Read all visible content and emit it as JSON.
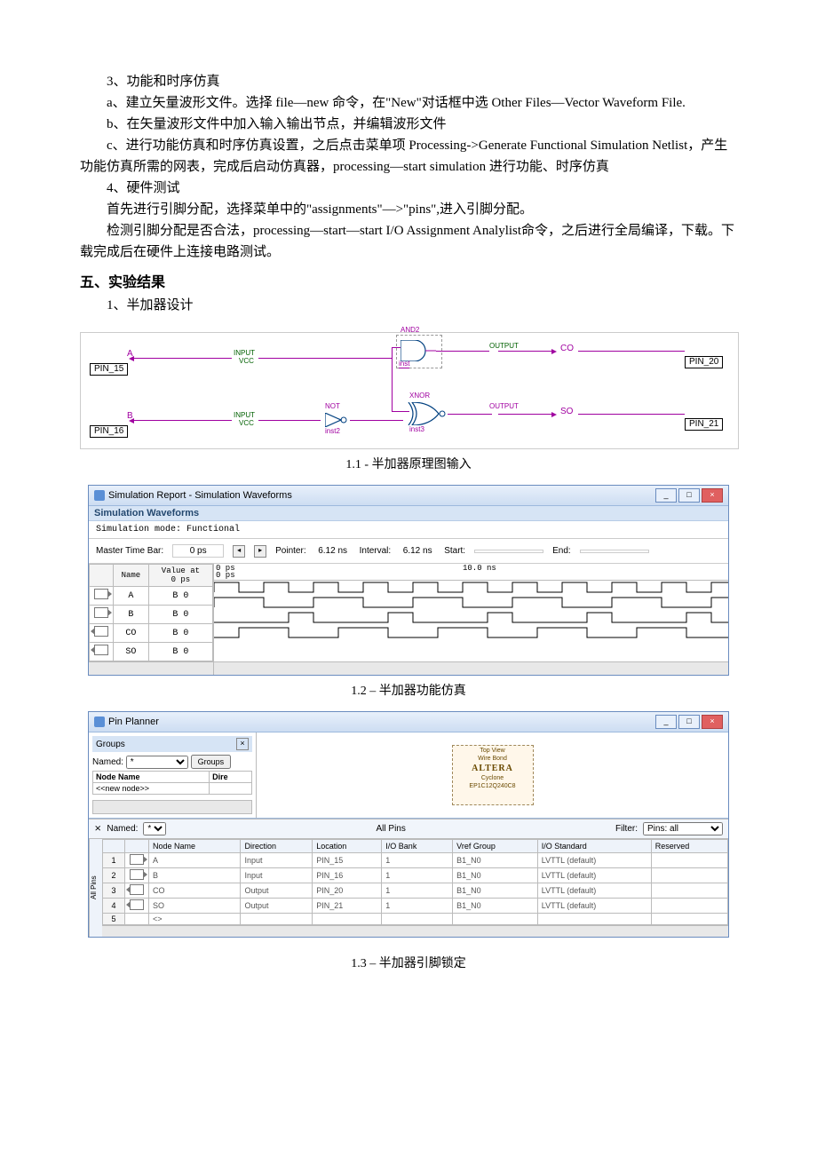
{
  "text": {
    "p1": "3、功能和时序仿真",
    "p2": "a、建立矢量波形文件。选择 file—new 命令，在\"New\"对话框中选 Other Files—Vector Waveform File.",
    "p3": "b、在矢量波形文件中加入输入输出节点，并编辑波形文件",
    "p4": "c、进行功能仿真和时序仿真设置，之后点击菜单项 Processing->Generate Functional Simulation Netlist，产生功能仿真所需的网表，完成后启动仿真器，processing—start simulation 进行功能、时序仿真",
    "p5": "4、硬件测试",
    "p6": "首先进行引脚分配，选择菜单中的\"assignments\"—>\"pins\",进入引脚分配。",
    "p7": "检测引脚分配是否合法，processing—start—start  I/O Assignment Analylist命令，之后进行全局编译，下载。下载完成后在硬件上连接电路测试。",
    "sec5": "五、实验结果",
    "p8": "1、半加器设计"
  },
  "captions": {
    "c1": "1.1 - 半加器原理图输入",
    "c2": "1.2 – 半加器功能仿真",
    "c3": "1.3 – 半加器引脚锁定"
  },
  "schematic": {
    "pins_in": [
      "PIN_15",
      "PIN_16"
    ],
    "pins_out": [
      "PIN_20",
      "PIN_21"
    ],
    "inputs": [
      {
        "name": "A",
        "label": "INPUT",
        "vcc": "VCC"
      },
      {
        "name": "B",
        "label": "INPUT",
        "vcc": "VCC"
      }
    ],
    "outputs": [
      {
        "name": "CO",
        "label": "OUTPUT"
      },
      {
        "name": "SO",
        "label": "OUTPUT"
      }
    ],
    "gates": {
      "and": "AND2",
      "xnor": "XNOR",
      "not": "NOT",
      "inst_and": "inst",
      "inst_not": "inst2",
      "inst_xnor": "inst3"
    },
    "wire_color": "#a000a0",
    "label_color": "#008000"
  },
  "simwin": {
    "title": "Simulation Report - Simulation Waveforms",
    "subhead": "Simulation Waveforms",
    "mode": "Simulation mode: Functional",
    "toolbar": {
      "masterbar_lbl": "Master Time Bar:",
      "masterbar_val": "0 ps",
      "pointer_lbl": "Pointer:",
      "pointer_val": "6.12 ns",
      "interval_lbl": "Interval:",
      "interval_val": "6.12 ns",
      "start_lbl": "Start:",
      "start_val": "",
      "end_lbl": "End:",
      "end_val": ""
    },
    "cols": {
      "name": "Name",
      "value": "Value at\n0 ps"
    },
    "ruler": {
      "t0": "0 ps",
      "t0b": "0 ps",
      "t1": "10.0 ns"
    },
    "signals": [
      {
        "name": "A",
        "value": "B 0",
        "dir": "in",
        "period": 1.0
      },
      {
        "name": "B",
        "value": "B 0",
        "dir": "in",
        "period": 2.0
      },
      {
        "name": "CO",
        "value": "B 0",
        "dir": "out"
      },
      {
        "name": "SO",
        "value": "B 0",
        "dir": "out"
      }
    ],
    "colors": {
      "wave": "#000000",
      "bg": "#ffffff",
      "grid": "#dddddd",
      "titlebar": "#cdddf2"
    }
  },
  "pinplanner": {
    "title": "Pin Planner",
    "groups": {
      "title": "Groups",
      "named_lbl": "Named:",
      "named_val": "*",
      "btn": "Groups",
      "col_node": "Node Name",
      "col_dir": "Dire",
      "newnode": "<<new node>>"
    },
    "chip": {
      "l1": "Top View",
      "l2": "Wire Bond",
      "brand": "ALTERA",
      "l3": "Cyclone",
      "l4": "EP1C12Q240C8"
    },
    "midbar": {
      "named_lbl": "Named:",
      "named_val": "*",
      "center": "All Pins",
      "filter_lbl": "Filter:",
      "filter_val": "Pins: all"
    },
    "cols": [
      "",
      "",
      "Node Name",
      "Direction",
      "Location",
      "I/O Bank",
      "Vref Group",
      "I/O Standard",
      "Reserved"
    ],
    "rows": [
      {
        "idx": "1",
        "dir": "in",
        "name": "A",
        "direction": "Input",
        "loc": "PIN_15",
        "bank": "1",
        "vref": "B1_N0",
        "std": "LVTTL (default)",
        "res": ""
      },
      {
        "idx": "2",
        "dir": "in",
        "name": "B",
        "direction": "Input",
        "loc": "PIN_16",
        "bank": "1",
        "vref": "B1_N0",
        "std": "LVTTL (default)",
        "res": ""
      },
      {
        "idx": "3",
        "dir": "out",
        "name": "CO",
        "direction": "Output",
        "loc": "PIN_20",
        "bank": "1",
        "vref": "B1_N0",
        "std": "LVTTL (default)",
        "res": ""
      },
      {
        "idx": "4",
        "dir": "out",
        "name": "SO",
        "direction": "Output",
        "loc": "PIN_21",
        "bank": "1",
        "vref": "B1_N0",
        "std": "LVTTL (default)",
        "res": ""
      },
      {
        "idx": "5",
        "dir": "",
        "name": "<<new node>>",
        "direction": "",
        "loc": "",
        "bank": "",
        "vref": "",
        "std": "",
        "res": ""
      }
    ],
    "vtab": "All Pins"
  }
}
